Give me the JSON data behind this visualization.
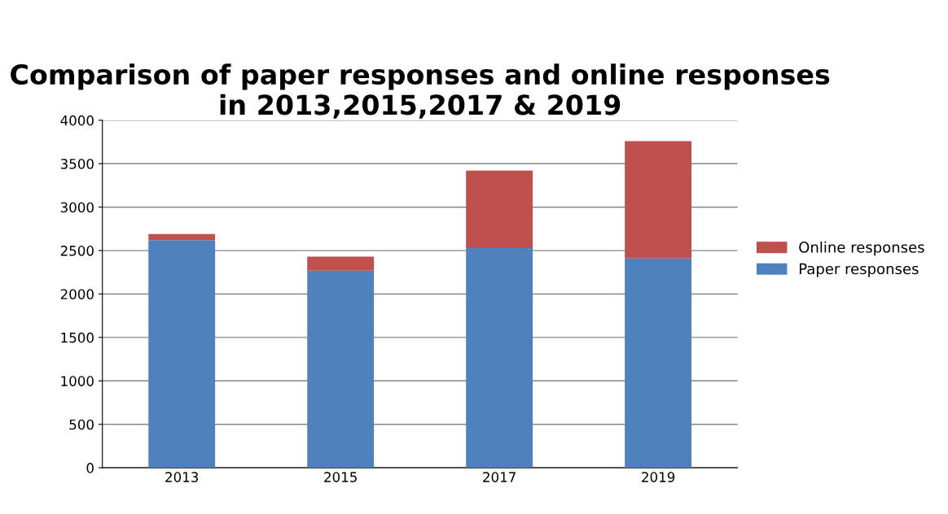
{
  "chart_data": {
    "type": "bar",
    "title": "Comparison of paper responses and online responses in 2013,2015,2017 & 2019",
    "categories": [
      "2013",
      "2015",
      "2017",
      "2019"
    ],
    "series": [
      {
        "name": "Paper responses",
        "color": "#4f81bd",
        "values": [
          2620,
          2270,
          2530,
          2410
        ]
      },
      {
        "name": "Online responses",
        "color": "#c0504d",
        "values": [
          70,
          160,
          890,
          1350
        ]
      }
    ],
    "stacked": true,
    "ylim": [
      0,
      4000
    ],
    "yticks": [
      0,
      500,
      1000,
      1500,
      2000,
      2500,
      3000,
      3500,
      4000
    ],
    "grid": "y",
    "legend": "right"
  }
}
